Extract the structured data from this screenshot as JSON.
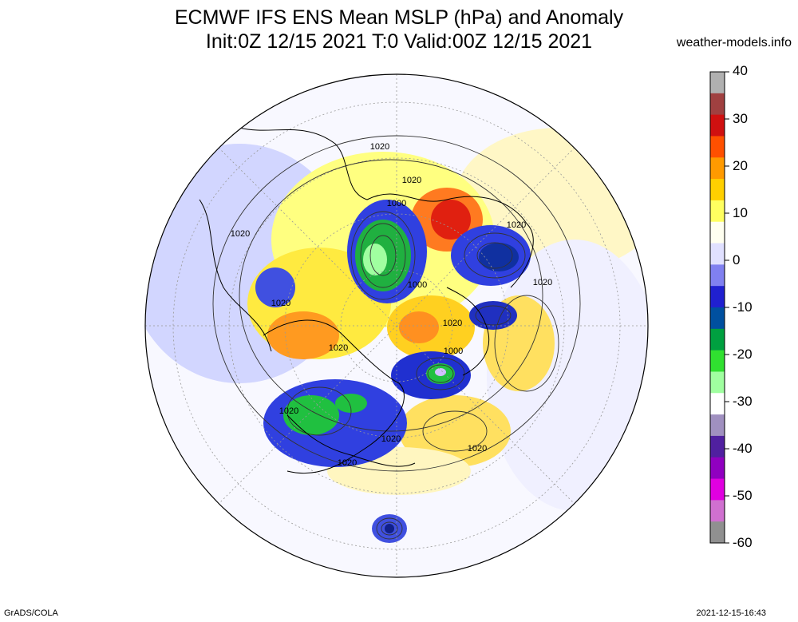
{
  "header": {
    "title_line1": "ECMWF IFS ENS Mean MSLP (hPa) and Anomaly",
    "title_line2": "Init:0Z 12/15 2021  T:0 Valid:00Z 12/15 2021",
    "site": "weather-models.info"
  },
  "footer": {
    "left": "GrADS/COLA",
    "right": "2021-12-15-16:43"
  },
  "colorbar": {
    "labels": [
      "40",
      "30",
      "20",
      "10",
      "0",
      "-10",
      "-20",
      "-30",
      "-40",
      "-50",
      "-60"
    ],
    "colors": [
      "#b0b0b0",
      "#a04040",
      "#d01010",
      "#ff5000",
      "#ff9a00",
      "#ffd000",
      "#ffff60",
      "#fffff0",
      "#e0e0ff",
      "#8080f0",
      "#2020d0",
      "#0050a0",
      "#00a040",
      "#30e030",
      "#a0ffa0",
      "#ffffff",
      "#a090c0",
      "#5020a0",
      "#9000c0",
      "#e000e0",
      "#d070d0",
      "#909090"
    ]
  },
  "map": {
    "contour_labels": [
      "1020",
      "1020",
      "1000",
      "1020",
      "1020",
      "1000",
      "1020",
      "1020",
      "1020",
      "1000",
      "1020",
      "1020",
      "1020",
      "1020",
      "1020"
    ],
    "colors": {
      "yellow": "#ffff80",
      "pale_yellow": "#fffbd0",
      "orange": "#ffa020",
      "red": "#e02010",
      "blue": "#2030d0",
      "light_blue": "#b8c0ff",
      "pale_blue": "#dde2ff",
      "green": "#20c040",
      "dark_green": "#0a7a30"
    }
  }
}
